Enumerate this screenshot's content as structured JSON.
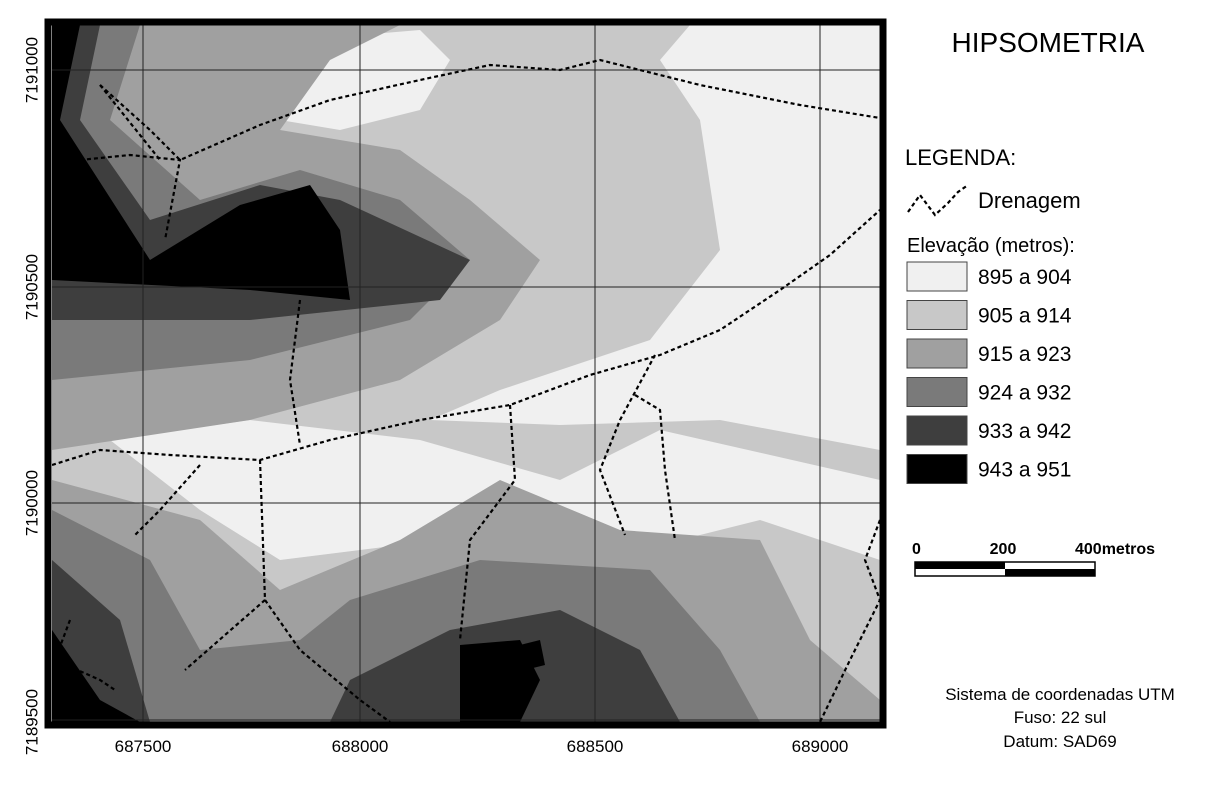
{
  "title": "HIPSOMETRIA",
  "legend": {
    "heading": "LEGENDA:",
    "drainage": "Drenagem",
    "elevation_heading": "Elevação (metros):",
    "classes": [
      {
        "label": "895 a 904",
        "color": "#f0f0f0"
      },
      {
        "label": "905 a 914",
        "color": "#c8c8c8"
      },
      {
        "label": "915 a 923",
        "color": "#a0a0a0"
      },
      {
        "label": "924 a 932",
        "color": "#7a7a7a"
      },
      {
        "label": "933 a 942",
        "color": "#3e3e3e"
      },
      {
        "label": "943 a 951",
        "color": "#000000"
      }
    ]
  },
  "grid": {
    "x_labels": [
      "687500",
      "688000",
      "688500",
      "689000"
    ],
    "y_labels": [
      "7191000",
      "7190500",
      "7190000",
      "7189500"
    ]
  },
  "scale_bar": {
    "labels": [
      "0",
      "200",
      "400metros"
    ]
  },
  "footer": [
    "Sistema de coordenadas UTM",
    "Fuso: 22 sul",
    "Datum: SAD69"
  ]
}
